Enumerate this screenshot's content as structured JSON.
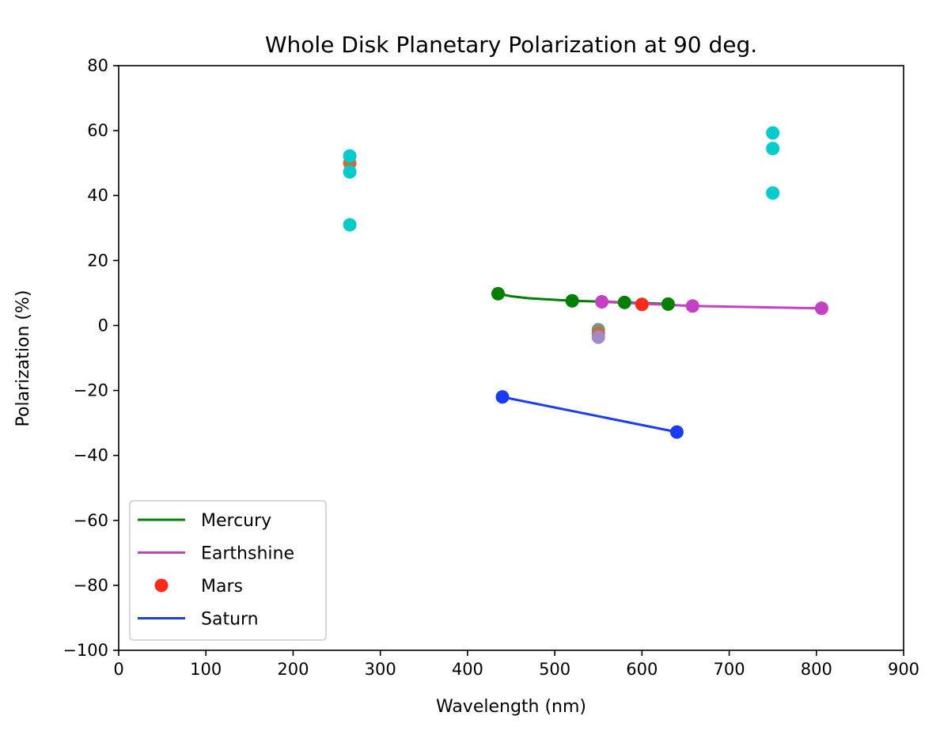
{
  "chart_data": {
    "type": "scatter",
    "title": "Whole Disk Planetary Polarization at 90 deg.",
    "xlabel": "Wavelength (nm)",
    "ylabel": "Polarization (%)",
    "xlim": [
      0,
      900
    ],
    "ylim": [
      -100,
      80
    ],
    "xticks": [
      0,
      100,
      200,
      300,
      400,
      500,
      600,
      700,
      800,
      900
    ],
    "yticks": [
      -100,
      -80,
      -60,
      -40,
      -20,
      0,
      20,
      40,
      60,
      80
    ],
    "xtick_labels": [
      "0",
      "100",
      "200",
      "300",
      "400",
      "500",
      "600",
      "700",
      "800",
      "900"
    ],
    "ytick_labels": [
      "−100",
      "−80",
      "−60",
      "−40",
      "−20",
      "0",
      "20",
      "40",
      "60",
      "80"
    ],
    "grid": false,
    "legend_position": "lower-left",
    "series": [
      {
        "name": "Mercury",
        "color": "#008000",
        "style": "line",
        "curve": [
          [
            435,
            9.8
          ],
          [
            450,
            9.0
          ],
          [
            470,
            8.4
          ],
          [
            495,
            8.0
          ],
          [
            520,
            7.6
          ],
          [
            550,
            7.4
          ],
          [
            580,
            7.1
          ],
          [
            605,
            6.9
          ],
          [
            630,
            6.6
          ]
        ],
        "markers": [
          [
            435,
            9.8
          ],
          [
            520,
            7.6
          ],
          [
            580,
            7.1
          ],
          [
            630,
            6.6
          ]
        ]
      },
      {
        "name": "Earthshine",
        "color": "#c640c6",
        "style": "line",
        "curve": [
          [
            554,
            7.3
          ],
          [
            658,
            6.0
          ],
          [
            806,
            5.3
          ]
        ],
        "markers": [
          [
            554,
            7.3
          ],
          [
            658,
            6.0
          ],
          [
            806,
            5.3
          ]
        ]
      },
      {
        "name": "Mars",
        "color": "#ff2a1a",
        "style": "marker",
        "curve": [],
        "markers": [
          [
            600,
            6.5
          ]
        ]
      },
      {
        "name": "Saturn",
        "color": "#1a3cf5",
        "style": "line",
        "curve": [
          [
            440,
            -22
          ],
          [
            640,
            -32.8
          ]
        ],
        "markers": [
          [
            440,
            -22
          ],
          [
            640,
            -32.8
          ]
        ]
      }
    ],
    "extra_points": [
      {
        "color": "#cc6a3a",
        "x": 265,
        "y": 50
      },
      {
        "color": "#00cccc",
        "x": 265,
        "y": 52.2
      },
      {
        "color": "#00cccc",
        "x": 265,
        "y": 47.3
      },
      {
        "color": "#00cccc",
        "x": 265,
        "y": 31
      },
      {
        "color": "#00cccc",
        "x": 750,
        "y": 59.3
      },
      {
        "color": "#00cccc",
        "x": 750,
        "y": 54.5
      },
      {
        "color": "#00cccc",
        "x": 750,
        "y": 40.8
      },
      {
        "color": "#6a9a8a",
        "x": 550,
        "y": -1.3
      },
      {
        "color": "#cc6a3a",
        "x": 550,
        "y": -2.4
      },
      {
        "color": "#a08ac8",
        "x": 550,
        "y": -3.6
      }
    ]
  }
}
